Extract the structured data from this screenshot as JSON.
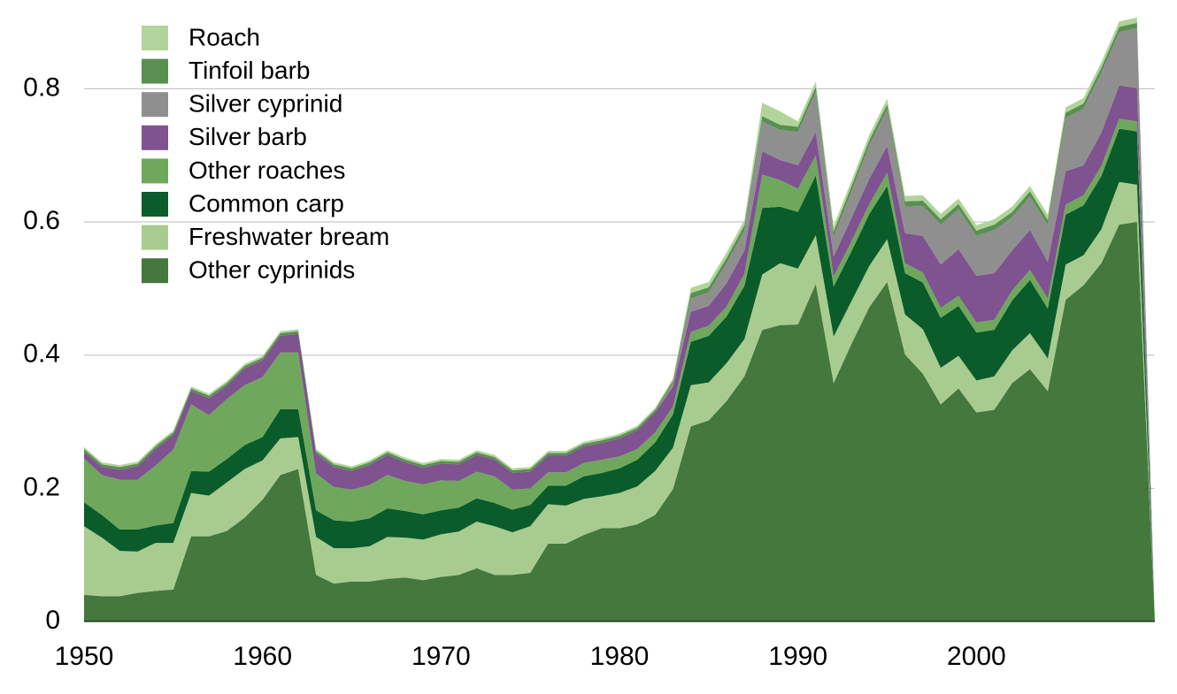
{
  "chart_data": {
    "type": "stacked_area",
    "x": [
      1950,
      1951,
      1952,
      1953,
      1954,
      1955,
      1956,
      1957,
      1958,
      1959,
      1960,
      1961,
      1962,
      1963,
      1964,
      1965,
      1966,
      1967,
      1968,
      1969,
      1970,
      1971,
      1972,
      1973,
      1974,
      1975,
      1976,
      1977,
      1978,
      1979,
      1980,
      1981,
      1982,
      1983,
      1984,
      1985,
      1986,
      1987,
      1988,
      1989,
      1990,
      1991,
      1992,
      1993,
      1994,
      1995,
      1996,
      1997,
      1998,
      1999,
      2000,
      2001,
      2002,
      2003,
      2004,
      2005,
      2006,
      2007,
      2008,
      2009,
      2010
    ],
    "xlim": [
      1950,
      2010
    ],
    "xticks": [
      1950,
      1960,
      1970,
      1980,
      1990,
      2000
    ],
    "ylim": [
      0,
      0.92
    ],
    "yticks": [
      0,
      0.2,
      0.4,
      0.6,
      0.8
    ],
    "grid": true,
    "legend": "upper left",
    "series": [
      {
        "name": "Other cyprinids",
        "color": "#44783c",
        "values": [
          0.04,
          0.038,
          0.038,
          0.043,
          0.046,
          0.048,
          0.128,
          0.128,
          0.136,
          0.156,
          0.183,
          0.22,
          0.229,
          0.07,
          0.057,
          0.06,
          0.06,
          0.064,
          0.066,
          0.062,
          0.067,
          0.07,
          0.08,
          0.07,
          0.07,
          0.073,
          0.117,
          0.117,
          0.13,
          0.14,
          0.14,
          0.146,
          0.16,
          0.199,
          0.293,
          0.302,
          0.331,
          0.368,
          0.438,
          0.445,
          0.446,
          0.507,
          0.358,
          0.417,
          0.472,
          0.51,
          0.401,
          0.372,
          0.326,
          0.35,
          0.314,
          0.318,
          0.358,
          0.379,
          0.346,
          0.483,
          0.505,
          0.538,
          0.596,
          0.6,
          0
        ]
      },
      {
        "name": "Freshwater bream",
        "color": "#a8cc8f",
        "values": [
          0.103,
          0.088,
          0.068,
          0.062,
          0.072,
          0.07,
          0.065,
          0.061,
          0.073,
          0.073,
          0.059,
          0.055,
          0.048,
          0.057,
          0.053,
          0.05,
          0.053,
          0.063,
          0.06,
          0.061,
          0.064,
          0.065,
          0.07,
          0.073,
          0.064,
          0.07,
          0.059,
          0.057,
          0.054,
          0.048,
          0.053,
          0.057,
          0.066,
          0.062,
          0.062,
          0.057,
          0.057,
          0.056,
          0.083,
          0.093,
          0.084,
          0.073,
          0.07,
          0.064,
          0.062,
          0.064,
          0.06,
          0.067,
          0.055,
          0.049,
          0.048,
          0.05,
          0.049,
          0.054,
          0.049,
          0.053,
          0.045,
          0.051,
          0.064,
          0.056,
          0
        ]
      },
      {
        "name": "Common carp",
        "color": "#0a5c2a",
        "values": [
          0.036,
          0.034,
          0.032,
          0.033,
          0.026,
          0.03,
          0.033,
          0.036,
          0.035,
          0.036,
          0.035,
          0.044,
          0.042,
          0.04,
          0.042,
          0.04,
          0.042,
          0.043,
          0.04,
          0.038,
          0.036,
          0.036,
          0.035,
          0.035,
          0.034,
          0.032,
          0.028,
          0.03,
          0.034,
          0.035,
          0.037,
          0.04,
          0.043,
          0.05,
          0.065,
          0.07,
          0.07,
          0.08,
          0.1,
          0.085,
          0.085,
          0.09,
          0.075,
          0.075,
          0.078,
          0.08,
          0.062,
          0.07,
          0.075,
          0.075,
          0.072,
          0.07,
          0.075,
          0.08,
          0.075,
          0.075,
          0.075,
          0.08,
          0.08,
          0.08,
          0
        ]
      },
      {
        "name": "Other roaches",
        "color": "#6fa85c",
        "values": [
          0.066,
          0.06,
          0.075,
          0.075,
          0.09,
          0.11,
          0.1,
          0.085,
          0.09,
          0.09,
          0.09,
          0.085,
          0.085,
          0.055,
          0.05,
          0.048,
          0.05,
          0.05,
          0.045,
          0.045,
          0.045,
          0.04,
          0.04,
          0.04,
          0.03,
          0.025,
          0.02,
          0.02,
          0.02,
          0.02,
          0.018,
          0.016,
          0.015,
          0.012,
          0.015,
          0.015,
          0.015,
          0.018,
          0.05,
          0.04,
          0.035,
          0.03,
          0.015,
          0.015,
          0.015,
          0.02,
          0.015,
          0.015,
          0.015,
          0.015,
          0.015,
          0.015,
          0.015,
          0.015,
          0.015,
          0.015,
          0.015,
          0.015,
          0.015,
          0.015,
          0
        ]
      },
      {
        "name": "Silver barb",
        "color": "#7f5290",
        "values": [
          0.01,
          0.012,
          0.015,
          0.02,
          0.025,
          0.022,
          0.02,
          0.025,
          0.02,
          0.025,
          0.025,
          0.025,
          0.028,
          0.03,
          0.03,
          0.028,
          0.03,
          0.03,
          0.028,
          0.025,
          0.025,
          0.025,
          0.025,
          0.025,
          0.025,
          0.025,
          0.025,
          0.025,
          0.025,
          0.025,
          0.027,
          0.028,
          0.03,
          0.03,
          0.03,
          0.03,
          0.035,
          0.035,
          0.035,
          0.03,
          0.035,
          0.035,
          0.03,
          0.035,
          0.038,
          0.04,
          0.045,
          0.055,
          0.065,
          0.07,
          0.07,
          0.07,
          0.06,
          0.06,
          0.055,
          0.05,
          0.045,
          0.05,
          0.05,
          0.05,
          0
        ]
      },
      {
        "name": "Silver cyprinid",
        "color": "#8f8f8f",
        "values": [
          0,
          0,
          0,
          0,
          0,
          0,
          0,
          0,
          0,
          0,
          0,
          0,
          0,
          0,
          0,
          0,
          0,
          0,
          0,
          0,
          0,
          0,
          0,
          0,
          0,
          0,
          0,
          0,
          0,
          0,
          0,
          0,
          0,
          0.005,
          0.02,
          0.02,
          0.03,
          0.03,
          0.045,
          0.045,
          0.05,
          0.06,
          0.03,
          0.04,
          0.05,
          0.055,
          0.04,
          0.045,
          0.06,
          0.06,
          0.06,
          0.065,
          0.05,
          0.05,
          0.055,
          0.08,
          0.085,
          0.09,
          0.08,
          0.09,
          0
        ]
      },
      {
        "name": "Tinfoil barb",
        "color": "#5a8f52",
        "values": [
          0.004,
          0.004,
          0.004,
          0.004,
          0.004,
          0.004,
          0.004,
          0.004,
          0.004,
          0.004,
          0.004,
          0.004,
          0.004,
          0.004,
          0.004,
          0.004,
          0.004,
          0.004,
          0.004,
          0.004,
          0.004,
          0.004,
          0.004,
          0.004,
          0.004,
          0.004,
          0.004,
          0.004,
          0.004,
          0.004,
          0.004,
          0.004,
          0.004,
          0.004,
          0.008,
          0.008,
          0.008,
          0.008,
          0.008,
          0.008,
          0.008,
          0.008,
          0.008,
          0.008,
          0.008,
          0.008,
          0.008,
          0.008,
          0.008,
          0.008,
          0.008,
          0.008,
          0.008,
          0.008,
          0.008,
          0.008,
          0.008,
          0.008,
          0.008,
          0.008,
          0
        ]
      },
      {
        "name": "Roach",
        "color": "#b1d49a",
        "values": [
          0.003,
          0.003,
          0.003,
          0.003,
          0.003,
          0.003,
          0.003,
          0.003,
          0.003,
          0.003,
          0.003,
          0.003,
          0.003,
          0.003,
          0.003,
          0.003,
          0.003,
          0.003,
          0.003,
          0.003,
          0.003,
          0.003,
          0.003,
          0.003,
          0.003,
          0.003,
          0.003,
          0.003,
          0.003,
          0.003,
          0.003,
          0.003,
          0.003,
          0.003,
          0.008,
          0.008,
          0.008,
          0.008,
          0.02,
          0.02,
          0.008,
          0.008,
          0.008,
          0.008,
          0.008,
          0.008,
          0.008,
          0.008,
          0.008,
          0.008,
          0.008,
          0.008,
          0.008,
          0.008,
          0.008,
          0.008,
          0.008,
          0.008,
          0.008,
          0.008,
          0
        ]
      }
    ]
  }
}
